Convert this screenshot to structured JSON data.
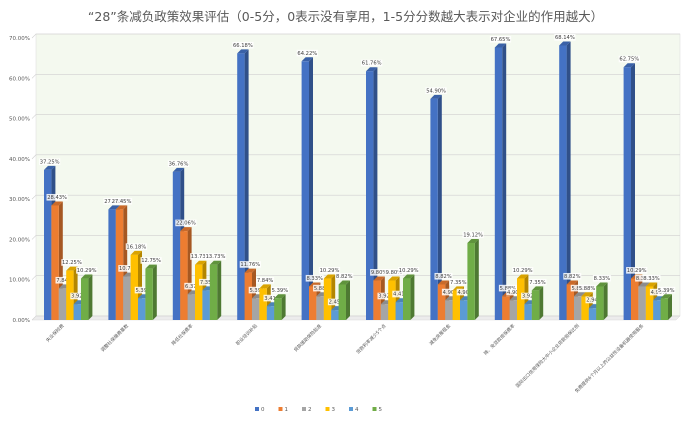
{
  "chart_data": {
    "type": "bar",
    "title": "“28”条减负政策效果评估（0-5分，0表示没有享用，1-5分分数越大表示对企业的作用越大）",
    "xlabel": "",
    "ylabel": "",
    "ylim": [
      0,
      70
    ],
    "yticks": [
      "0.00%",
      "10.00%",
      "20.00%",
      "30.00%",
      "40.00%",
      "50.00%",
      "60.00%",
      "70.00%"
    ],
    "grid": true,
    "legend_position": "bottom",
    "categories": [
      "失业保险费",
      "调整社保缴费基数",
      "降低社保费率",
      "职业培训补贴",
      "贷款援助保险贴息",
      "贷款利率减少5个点",
      "减免房屋租金",
      "降、免贷款担保费率",
      "国际出口信用保险大中小企业贷款担保比例",
      "免费提供6个月以上的公益性设备机器使用服务"
    ],
    "series": [
      {
        "name": "0",
        "color": "#4472C4",
        "values": [
          37.25,
          27.45,
          36.76,
          66.18,
          64.22,
          61.76,
          54.9,
          67.65,
          68.14,
          62.75
        ],
        "labels": [
          "37.25%",
          "27.45%",
          "36.76%",
          "66.18%",
          "64.22%",
          "61.76%",
          "54.90%",
          "67.65%",
          "68.14%",
          "62.75%"
        ]
      },
      {
        "name": "1",
        "color": "#ED7D31",
        "values": [
          28.43,
          27.45,
          22.06,
          11.76,
          8.33,
          9.8,
          8.82,
          5.88,
          8.82,
          10.29
        ],
        "labels": [
          "28.43%",
          "27.45%",
          "22.06%",
          "11.76%",
          "8.33%",
          "9.80%",
          "8.82%",
          "5.88%",
          "8.82%",
          "10.29%"
        ]
      },
      {
        "name": "2",
        "color": "#A5A5A5",
        "values": [
          7.84,
          10.78,
          6.37,
          5.39,
          5.88,
          3.92,
          4.9,
          4.9,
          5.88,
          8.33
        ],
        "labels": [
          "7.84%",
          "10.78%",
          "6.37%",
          "5.39%",
          "5.88%",
          "3.92%",
          "4.90%",
          "4.90%",
          "5.88%",
          "8.33%"
        ]
      },
      {
        "name": "3",
        "color": "#FFC000",
        "values": [
          12.25,
          16.18,
          13.73,
          7.84,
          10.29,
          9.8,
          7.35,
          10.29,
          5.88,
          8.33
        ],
        "labels": [
          "12.25%",
          "16.18%",
          "13.73%",
          "7.84%",
          "10.29%",
          "9.80%",
          "7.35%",
          "10.29%",
          "5.88%",
          "8.33%"
        ]
      },
      {
        "name": "4",
        "color": "#5B9BD5",
        "values": [
          3.92,
          5.39,
          7.35,
          3.41,
          2.45,
          4.41,
          4.9,
          3.92,
          2.94,
          4.9
        ],
        "labels": [
          "3.92%",
          "5.39%",
          "7.35%",
          "3.41%",
          "2.45%",
          "4.41%",
          "4.90%",
          "3.92%",
          "2.94%",
          "4.90%"
        ]
      },
      {
        "name": "5",
        "color": "#70AD47",
        "values": [
          10.29,
          12.75,
          13.73,
          5.39,
          8.82,
          10.29,
          19.12,
          7.35,
          8.33,
          5.39
        ],
        "labels": [
          "10.29%",
          "12.75%",
          "13.73%",
          "5.39%",
          "8.82%",
          "10.29%",
          "19.12%",
          "7.35%",
          "8.33%",
          "5.39%"
        ]
      }
    ]
  }
}
